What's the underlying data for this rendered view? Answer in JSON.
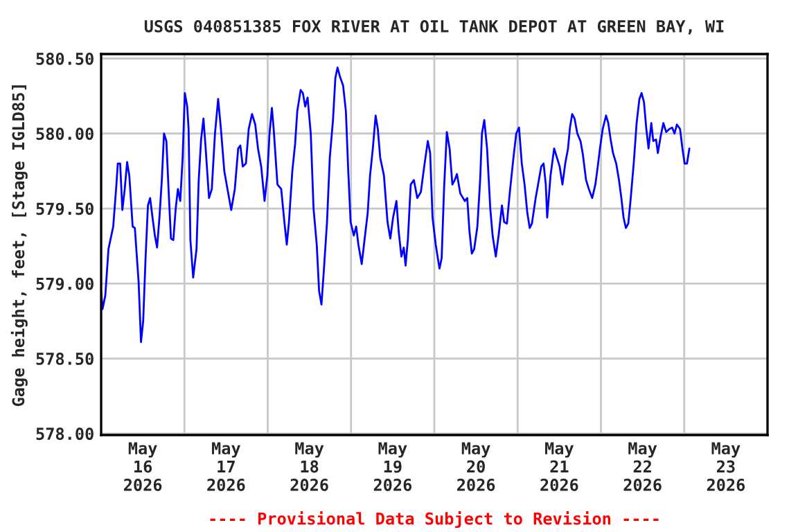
{
  "chart_data": {
    "type": "line",
    "title": "USGS 040851385 FOX RIVER AT OIL TANK DEPOT AT GREEN BAY, WI",
    "ylabel": "Gage height, feet, [Stage IGLD85]",
    "annotations": [
      "---- Provisional Data Subject to Revision ----"
    ],
    "xlim": [
      "2026-05-16",
      "2026-05-24"
    ],
    "xticks": [
      {
        "value": "2026-05-16T12:00",
        "label": "May\n16\n2026"
      },
      {
        "value": "2026-05-17",
        "label": null
      },
      {
        "value": "2026-05-17T12:00",
        "label": "May\n17\n2026"
      },
      {
        "value": "2026-05-18",
        "label": null
      },
      {
        "value": "2026-05-18T12:00",
        "label": "May\n18\n2026"
      },
      {
        "value": "2026-05-19",
        "label": null
      },
      {
        "value": "2026-05-19T12:00",
        "label": "May\n19\n2026"
      },
      {
        "value": "2026-05-20",
        "label": null
      },
      {
        "value": "2026-05-20T12:00",
        "label": "May\n20\n2026"
      },
      {
        "value": "2026-05-21",
        "label": null
      },
      {
        "value": "2026-05-21T12:00",
        "label": "May\n21\n2026"
      },
      {
        "value": "2026-05-22",
        "label": null
      },
      {
        "value": "2026-05-22T12:00",
        "label": "May\n22\n2026"
      },
      {
        "value": "2026-05-23",
        "label": null
      },
      {
        "value": "2026-05-23T12:00",
        "label": "May\n23\n2026"
      }
    ],
    "ylim": [
      577.99,
      580.53
    ],
    "yticks": [
      {
        "value": 578.0,
        "label": "578.00"
      },
      {
        "value": 578.5,
        "label": "578.50"
      },
      {
        "value": 579.0,
        "label": "579.00"
      },
      {
        "value": 579.5,
        "label": "579.50"
      },
      {
        "value": 580.0,
        "label": "580.00"
      },
      {
        "value": 580.5,
        "label": "580.50"
      }
    ],
    "grid": true,
    "line_style": "solid",
    "marker": "none",
    "series": [
      {
        "color": "#0000ff",
        "x": [
          "2026-05-16T00:00",
          "2026-05-16T00:24",
          "2026-05-16T01:12",
          "2026-05-16T02:07",
          "2026-05-16T03:29",
          "2026-05-16T04:24",
          "2026-05-16T04:48",
          "2026-05-16T05:29",
          "2026-05-16T06:07",
          "2026-05-16T06:48",
          "2026-05-16T07:29",
          "2026-05-16T08:07",
          "2026-05-16T09:05",
          "2026-05-16T09:43",
          "2026-05-16T10:48",
          "2026-05-16T11:29",
          "2026-05-16T12:07",
          "2026-05-16T12:48",
          "2026-05-16T13:29",
          "2026-05-16T14:07",
          "2026-05-16T14:48",
          "2026-05-16T15:29",
          "2026-05-16T16:07",
          "2026-05-16T16:48",
          "2026-05-16T17:29",
          "2026-05-16T18:07",
          "2026-05-16T18:48",
          "2026-05-16T19:29",
          "2026-05-16T20:07",
          "2026-05-16T20:48",
          "2026-05-16T21:29",
          "2026-05-16T22:07",
          "2026-05-16T22:48",
          "2026-05-16T23:29",
          "2026-05-17T00:07",
          "2026-05-17T00:48",
          "2026-05-17T01:12",
          "2026-05-17T01:43",
          "2026-05-17T02:31",
          "2026-05-17T03:29",
          "2026-05-17T04:07",
          "2026-05-17T04:48",
          "2026-05-17T05:29",
          "2026-05-17T06:07",
          "2026-05-17T07:05",
          "2026-05-17T07:53",
          "2026-05-17T08:48",
          "2026-05-17T09:43",
          "2026-05-17T10:31",
          "2026-05-17T11:29",
          "2026-05-17T12:24",
          "2026-05-17T13:29",
          "2026-05-17T14:31",
          "2026-05-17T15:29",
          "2026-05-17T16:07",
          "2026-05-17T16:48",
          "2026-05-17T17:43",
          "2026-05-17T18:31",
          "2026-05-17T19:29",
          "2026-05-17T20:24",
          "2026-05-17T21:12",
          "2026-05-17T22:07",
          "2026-05-17T23:05",
          "2026-05-17T23:53",
          "2026-05-18T00:31",
          "2026-05-18T01:12",
          "2026-05-18T01:43",
          "2026-05-18T02:48",
          "2026-05-18T03:53",
          "2026-05-18T04:48",
          "2026-05-18T05:29",
          "2026-05-18T06:07",
          "2026-05-18T07:05",
          "2026-05-18T07:53",
          "2026-05-18T08:31",
          "2026-05-18T09:29",
          "2026-05-18T10:07",
          "2026-05-18T10:48",
          "2026-05-18T11:29",
          "2026-05-18T12:24",
          "2026-05-18T13:12",
          "2026-05-18T14:07",
          "2026-05-18T14:48",
          "2026-05-18T15:29",
          "2026-05-18T16:07",
          "2026-05-18T17:05",
          "2026-05-18T17:53",
          "2026-05-18T18:48",
          "2026-05-18T19:29",
          "2026-05-18T20:07",
          "2026-05-18T20:48",
          "2026-05-18T21:43",
          "2026-05-18T22:31",
          "2026-05-18T23:12",
          "2026-05-18T23:53",
          "2026-05-19T00:48",
          "2026-05-19T01:29",
          "2026-05-19T02:07",
          "2026-05-19T03:05",
          "2026-05-19T03:53",
          "2026-05-19T04:48",
          "2026-05-19T05:29",
          "2026-05-19T06:17",
          "2026-05-19T07:05",
          "2026-05-19T07:43",
          "2026-05-19T08:24",
          "2026-05-19T09:29",
          "2026-05-19T10:31",
          "2026-05-19T11:19",
          "2026-05-19T12:07",
          "2026-05-19T13:05",
          "2026-05-19T13:43",
          "2026-05-19T14:31",
          "2026-05-19T15:12",
          "2026-05-19T15:43",
          "2026-05-19T16:24",
          "2026-05-19T17:12",
          "2026-05-19T18:07",
          "2026-05-19T19:05",
          "2026-05-19T20:07",
          "2026-05-19T21:05",
          "2026-05-19T22:07",
          "2026-05-19T22:48",
          "2026-05-19T23:29",
          "2026-05-20T00:24",
          "2026-05-20T01:29",
          "2026-05-20T02:07",
          "2026-05-20T02:48",
          "2026-05-20T03:36",
          "2026-05-20T04:24",
          "2026-05-20T05:12",
          "2026-05-20T05:53",
          "2026-05-20T06:31",
          "2026-05-20T07:29",
          "2026-05-20T08:48",
          "2026-05-20T09:29",
          "2026-05-20T10:07",
          "2026-05-20T10:48",
          "2026-05-20T11:29",
          "2026-05-20T12:24",
          "2026-05-20T13:12",
          "2026-05-20T13:43",
          "2026-05-20T14:24",
          "2026-05-20T15:12",
          "2026-05-20T16:07",
          "2026-05-20T16:48",
          "2026-05-20T17:43",
          "2026-05-20T18:31",
          "2026-05-20T19:29",
          "2026-05-20T20:07",
          "2026-05-20T20:55",
          "2026-05-20T21:43",
          "2026-05-20T22:48",
          "2026-05-20T23:36",
          "2026-05-21T00:24",
          "2026-05-21T01:12",
          "2026-05-21T02:00",
          "2026-05-21T02:48",
          "2026-05-21T03:29",
          "2026-05-21T04:07",
          "2026-05-21T05:12",
          "2026-05-21T06:07",
          "2026-05-21T06:48",
          "2026-05-21T07:29",
          "2026-05-21T08:07",
          "2026-05-21T08:31",
          "2026-05-21T09:29",
          "2026-05-21T10:31",
          "2026-05-21T12:07",
          "2026-05-21T12:55",
          "2026-05-21T13:43",
          "2026-05-21T14:31",
          "2026-05-21T15:05",
          "2026-05-21T15:43",
          "2026-05-21T16:24",
          "2026-05-21T17:12",
          "2026-05-21T18:07",
          "2026-05-21T18:48",
          "2026-05-21T19:43",
          "2026-05-21T20:31",
          "2026-05-21T21:29",
          "2026-05-21T22:24",
          "2026-05-21T23:05",
          "2026-05-21T23:43",
          "2026-05-22T00:31",
          "2026-05-22T01:29",
          "2026-05-22T02:07",
          "2026-05-22T02:48",
          "2026-05-22T03:29",
          "2026-05-22T04:24",
          "2026-05-22T05:12",
          "2026-05-22T05:53",
          "2026-05-22T06:31",
          "2026-05-22T07:12",
          "2026-05-22T07:53",
          "2026-05-22T08:31",
          "2026-05-22T09:29",
          "2026-05-22T10:17",
          "2026-05-22T11:05",
          "2026-05-22T11:43",
          "2026-05-22T12:24",
          "2026-05-22T13:05",
          "2026-05-22T13:43",
          "2026-05-22T14:31",
          "2026-05-22T15:05",
          "2026-05-22T15:53",
          "2026-05-22T16:24",
          "2026-05-22T17:12",
          "2026-05-22T18:00",
          "2026-05-22T18:48",
          "2026-05-22T19:43",
          "2026-05-22T20:31",
          "2026-05-22T21:12",
          "2026-05-22T21:53",
          "2026-05-22T22:48",
          "2026-05-22T23:29",
          "2026-05-23T00:07",
          "2026-05-23T00:48",
          "2026-05-23T01:29"
        ],
        "values": [
          578.95,
          578.83,
          578.92,
          579.23,
          579.38,
          579.66,
          579.8,
          579.8,
          579.49,
          579.63,
          579.81,
          579.72,
          579.38,
          579.37,
          579.01,
          578.61,
          578.75,
          579.17,
          579.52,
          579.57,
          579.44,
          579.32,
          579.24,
          579.44,
          579.69,
          580.0,
          579.95,
          579.6,
          579.3,
          579.29,
          579.5,
          579.63,
          579.55,
          579.84,
          580.27,
          580.18,
          580.03,
          579.29,
          579.04,
          579.23,
          579.69,
          579.96,
          580.1,
          579.9,
          579.57,
          579.63,
          580.0,
          580.23,
          580.03,
          579.75,
          579.63,
          579.49,
          579.63,
          579.9,
          579.92,
          579.78,
          579.8,
          580.03,
          580.13,
          580.06,
          579.9,
          579.78,
          579.55,
          579.72,
          580.0,
          580.17,
          580.03,
          579.66,
          579.63,
          579.41,
          579.26,
          579.41,
          579.75,
          579.93,
          580.15,
          580.29,
          580.27,
          580.18,
          580.24,
          580.0,
          579.5,
          579.26,
          578.95,
          578.86,
          579.07,
          579.41,
          579.84,
          580.09,
          580.37,
          580.44,
          580.38,
          580.32,
          580.15,
          579.75,
          579.41,
          579.32,
          579.38,
          579.26,
          579.13,
          579.29,
          579.47,
          579.72,
          579.9,
          580.12,
          580.03,
          579.84,
          579.72,
          579.41,
          579.3,
          579.44,
          579.55,
          579.35,
          579.18,
          579.24,
          579.12,
          579.3,
          579.66,
          579.69,
          579.57,
          579.61,
          579.78,
          579.95,
          579.87,
          579.44,
          579.26,
          579.1,
          579.17,
          579.63,
          580.01,
          579.9,
          579.66,
          579.69,
          579.73,
          579.6,
          579.55,
          579.57,
          579.35,
          579.2,
          579.23,
          579.38,
          579.69,
          580.0,
          580.09,
          579.9,
          579.5,
          579.32,
          579.18,
          579.32,
          579.52,
          579.41,
          579.4,
          579.6,
          579.84,
          580.0,
          580.04,
          579.8,
          579.66,
          579.47,
          579.37,
          579.4,
          579.57,
          579.69,
          579.78,
          579.8,
          579.66,
          579.44,
          579.72,
          579.9,
          579.78,
          579.66,
          579.8,
          579.9,
          580.04,
          580.13,
          580.1,
          580.0,
          579.95,
          579.86,
          579.69,
          579.63,
          579.57,
          579.66,
          579.78,
          579.9,
          580.03,
          580.12,
          580.07,
          579.96,
          579.87,
          579.8,
          579.69,
          579.57,
          579.44,
          579.37,
          579.4,
          579.55,
          579.81,
          580.07,
          580.23,
          580.27,
          580.21,
          580.03,
          579.9,
          580.07,
          579.95,
          579.96,
          579.87,
          579.98,
          580.07,
          580.01,
          580.03,
          580.04,
          580.0,
          580.06,
          580.03,
          579.9,
          579.8,
          579.8,
          579.9
        ]
      }
    ]
  }
}
